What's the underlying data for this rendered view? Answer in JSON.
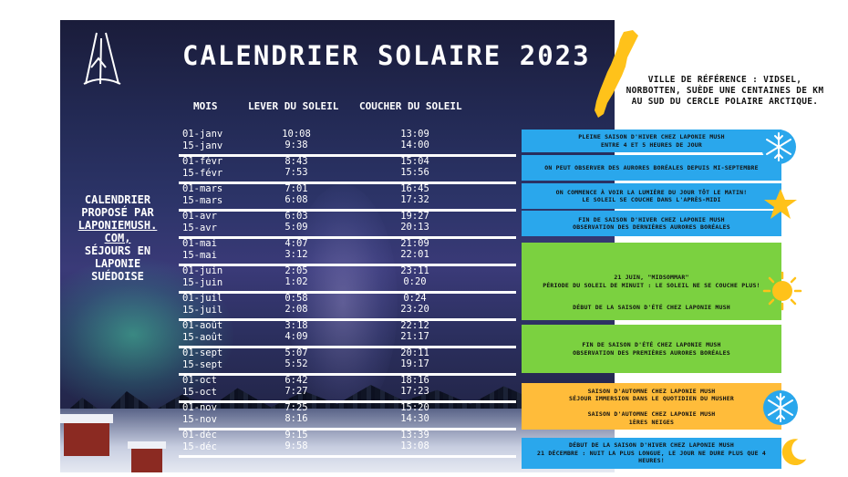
{
  "title": "CALENDRIER SOLAIRE 2023",
  "side_text": {
    "line1": "CALENDRIER",
    "line2": "PROPOSÉ PAR",
    "site1": "LAPONIEMUSH.",
    "site2": "COM,",
    "line3": "SÉJOURS EN",
    "line4": "LAPONIE",
    "line5": "SUÉDOISE"
  },
  "reference": "VILLE DE RÉFÉRENCE : VIDSEL, NORBOTTEN, SUÈDE UNE CENTAINES DE KM AU SUD DU CERCLE POLAIRE ARCTIQUE.",
  "headers": {
    "month": "MOIS",
    "sunrise": "LEVER DU SOLEIL",
    "sunset": "COUCHER DU SOLEIL"
  },
  "rows": [
    {
      "date1": "01-janv",
      "date2": "15-janv",
      "rise1": "10:08",
      "rise2": "9:38",
      "set1": "13:09",
      "set2": "14:00"
    },
    {
      "date1": "01-févr",
      "date2": "15-févr",
      "rise1": "8:43",
      "rise2": "7:53",
      "set1": "15:04",
      "set2": "15:56"
    },
    {
      "date1": "01-mars",
      "date2": "15-mars",
      "rise1": "7:01",
      "rise2": "6:08",
      "set1": "16:45",
      "set2": "17:32"
    },
    {
      "date1": "01-avr",
      "date2": "15-avr",
      "rise1": "6:03",
      "rise2": "5:09",
      "set1": "19:27",
      "set2": "20:13"
    },
    {
      "date1": "01-mai",
      "date2": "15-mai",
      "rise1": "4:07",
      "rise2": "3:12",
      "set1": "21:09",
      "set2": "22:01"
    },
    {
      "date1": "01-juin",
      "date2": "15-juin",
      "rise1": "2:05",
      "rise2": "1:02",
      "set1": "23:11",
      "set2": "0:20"
    },
    {
      "date1": "01-juil",
      "date2": "15-juil",
      "rise1": "0:58",
      "rise2": "2:08",
      "set1": "0:24",
      "set2": "23:20"
    },
    {
      "date1": "01-août",
      "date2": "15-août",
      "rise1": "3:18",
      "rise2": "4:09",
      "set1": "22:12",
      "set2": "21:17"
    },
    {
      "date1": "01-sept",
      "date2": "15-sept",
      "rise1": "5:07",
      "rise2": "5:52",
      "set1": "20:11",
      "set2": "19:17"
    },
    {
      "date1": "01-oct",
      "date2": "15-oct",
      "rise1": "6:42",
      "rise2": "7:27",
      "set1": "18:16",
      "set2": "17:23"
    },
    {
      "date1": "01-nov",
      "date2": "15-nov",
      "rise1": "7:25",
      "rise2": "8:16",
      "set1": "15:20",
      "set2": "14:30"
    },
    {
      "date1": "01-déc",
      "date2": "15-déc",
      "rise1": "9:15",
      "rise2": "9:58",
      "set1": "13:39",
      "set2": "13:08"
    }
  ],
  "bars": [
    {
      "color": "#2aa7ec",
      "lines": [
        "PLEINE SAISON D'HIVER CHEZ LAPONIE MUSH",
        "ENTRE 4 ET 5 HEURES DE JOUR"
      ]
    },
    {
      "color": "#2aa7ec",
      "lines": [
        "ON PEUT OBSERVER DES AURORES BORÉALES DEPUIS MI-SEPTEMBRE"
      ]
    },
    {
      "color": "#2aa7ec",
      "lines": [
        "ON COMMENCE À VOIR LA LUMIÈRE DU JOUR TÔT LE MATIN!",
        "LE SOLEIL SE COUCHE DANS L'APRÈS-MIDI"
      ]
    },
    {
      "color": "#2aa7ec",
      "lines": [
        "FIN DE SAISON D'HIVER CHEZ LAPONIE MUSH",
        "OBSERVATION DES DERNIÈRES AURORES BORÉALES"
      ]
    },
    {
      "color": "#7bd140",
      "lines": [
        "21 JUIN, \"MIDSOMMAR\"",
        "PÉRIODE DU SOLEIL DE MINUIT : LE SOLEIL NE SE COUCHE PLUS!"
      ]
    },
    {
      "color": "#7bd140",
      "lines": [
        "DÉBUT DE LA SAISON D'ÉTÉ CHEZ LAPONIE MUSH"
      ]
    },
    {
      "color": "#7bd140",
      "lines": [
        "FIN DE SAISON D'ÉTÉ CHEZ LAPONIE MUSH",
        "OBSERVATION DES PREMIÈRES AURORES BORÉALES"
      ]
    },
    {
      "color": "#ffbc3a",
      "lines": [
        "SAISON D'AUTOMNE CHEZ LAPONIE MUSH",
        "SÉJOUR IMMERSION DANS LE QUOTIDIEN DU MUSHER"
      ]
    },
    {
      "color": "#ffbc3a",
      "lines": [
        "SAISON D'AUTOMNE CHEZ LAPONIE MUSH",
        "1ÈRES NEIGES"
      ]
    },
    {
      "color": "#2aa7ec",
      "lines": [
        "DÉBUT DE LA SAISON D'HIVER CHEZ LAPONIE MUSH",
        "21 DÉCEMBRE : NUIT LA PLUS LONGUE, LE JOUR NE DURE PLUS QUE 4",
        "HEURES!"
      ]
    }
  ],
  "icons": [
    "snowflake-icon",
    "star-icon",
    "sun-icon",
    "snowflake-icon",
    "moon-icon",
    "tipi-logo",
    "sweden-map"
  ]
}
